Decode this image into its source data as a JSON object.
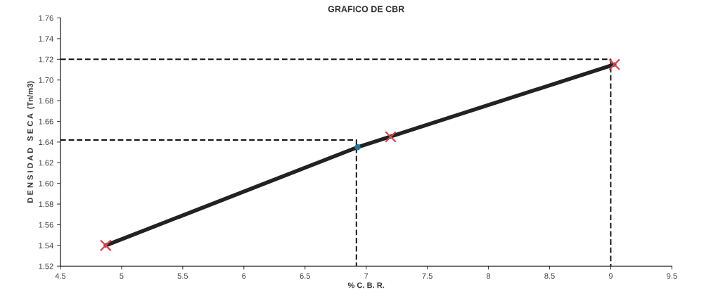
{
  "chart_data": {
    "type": "line",
    "title": "GRAFICO DE CBR",
    "xlabel": "% C. B. R.",
    "ylabel": "D E N S I D A D   S E C A  (Tn/m3)",
    "xlim": [
      4.5,
      9.5
    ],
    "xticks": [
      4.5,
      5,
      5.5,
      6,
      6.5,
      7,
      7.5,
      8,
      8.5,
      9,
      9.5
    ],
    "ylim": [
      1.52,
      1.76
    ],
    "yticks": [
      1.52,
      1.54,
      1.56,
      1.58,
      {
        "value": 1.6,
        "label": "1.60"
      },
      1.62,
      1.64,
      1.66,
      1.68,
      {
        "value": 1.7,
        "label": "1.70"
      },
      1.72,
      1.74,
      1.76
    ],
    "grid": false,
    "legend": false,
    "series": [
      {
        "color": "#222222",
        "line_style": "solid",
        "marker": "none",
        "x": [
          4.87,
          6.93,
          9.03
        ],
        "values": [
          1.54,
          1.635,
          1.715
        ]
      },
      {
        "color": "#111111",
        "line_style": "dashed",
        "marker": "none",
        "x": [
          4.5,
          9.0,
          9.0
        ],
        "values": [
          1.72,
          1.72,
          1.52
        ]
      },
      {
        "color": "#111111",
        "line_style": "dashed",
        "marker": "none",
        "x": [
          4.5,
          6.92,
          6.92
        ],
        "values": [
          1.642,
          1.642,
          1.52
        ]
      },
      {
        "type": "scatter",
        "color": "#e0404a",
        "marker": "cross",
        "x": [
          4.87,
          7.2,
          9.03
        ],
        "values": [
          1.54,
          1.645,
          1.715
        ]
      },
      {
        "type": "scatter",
        "color": "#1f7a9a",
        "marker": "circle",
        "x": [
          6.93
        ],
        "values": [
          1.635
        ]
      }
    ]
  }
}
